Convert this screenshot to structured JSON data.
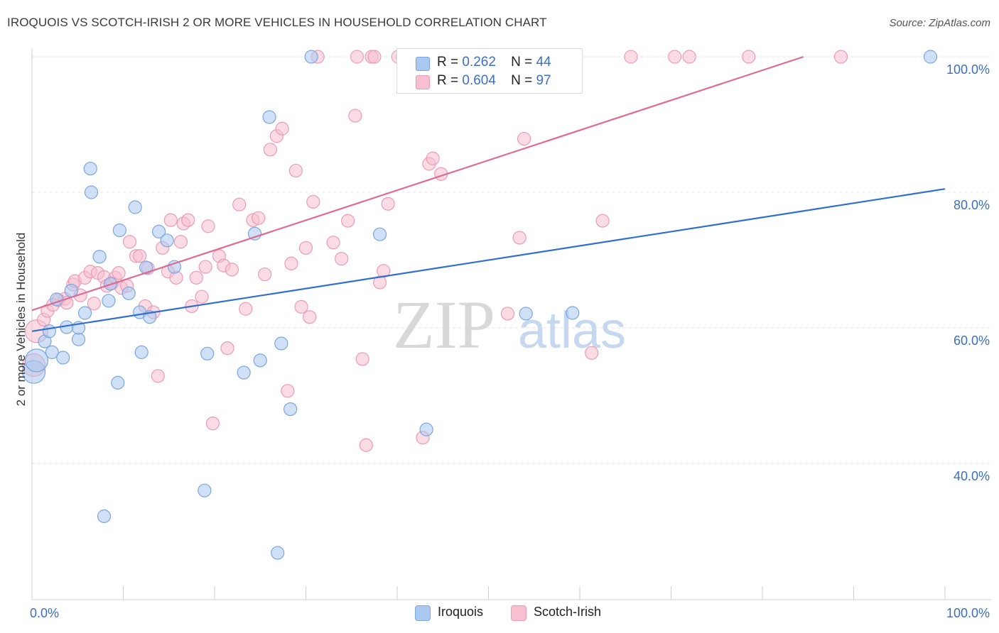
{
  "title": "IROQUOIS VS SCOTCH-IRISH 2 OR MORE VEHICLES IN HOUSEHOLD CORRELATION CHART",
  "source": "Source: ZipAtlas.com",
  "watermark": {
    "zip": "ZIP",
    "atlas": "atlas"
  },
  "legend": {
    "iroquois": {
      "r_label": "R =",
      "r_value": "0.262",
      "n_label": "N =",
      "n_value": "44"
    },
    "scotch_irish": {
      "r_label": "R =",
      "r_value": "0.604",
      "n_label": "N =",
      "n_value": "97"
    }
  },
  "bottom_legend": {
    "iroquois": "Iroquois",
    "scotch_irish": "Scotch-Irish"
  },
  "colors": {
    "iroquois_fill": "#aac8f0",
    "iroquois_stroke": "#7aa6df",
    "iroquois_line": "#2f6fcf",
    "scotch_fill": "#f7bfd0",
    "scotch_stroke": "#ee9ab5",
    "scotch_line": "#e06a92",
    "axis_text": "#3a6fc4",
    "grid": "#e3e3e3"
  },
  "chart_data": {
    "type": "scatter",
    "title": "IROQUOIS VS SCOTCH-IRISH 2 OR MORE VEHICLES IN HOUSEHOLD CORRELATION CHART",
    "xlabel": "",
    "ylabel": "2 or more Vehicles in Household",
    "xlim": [
      0,
      100
    ],
    "ylim": [
      20,
      102
    ],
    "x_tick_labels": [
      {
        "value": 0,
        "label": "0.0%"
      },
      {
        "value": 100,
        "label": "100.0%"
      }
    ],
    "y_tick_labels": [
      {
        "value": 40,
        "label": "40.0%"
      },
      {
        "value": 60,
        "label": "60.0%"
      },
      {
        "value": 80,
        "label": "80.0%"
      },
      {
        "value": 100,
        "label": "100.0%"
      }
    ],
    "series": [
      {
        "name": "Iroquois",
        "points": [
          [
            0.2,
            53.5
          ],
          [
            0.5,
            55.2
          ],
          [
            1.4,
            58.0
          ],
          [
            1.9,
            59.5
          ],
          [
            2.2,
            56.4
          ],
          [
            2.7,
            64.2
          ],
          [
            3.4,
            55.6
          ],
          [
            3.8,
            60.1
          ],
          [
            4.3,
            65.5
          ],
          [
            5.1,
            58.3
          ],
          [
            5.1,
            60.0
          ],
          [
            5.8,
            62.2
          ],
          [
            6.4,
            83.5
          ],
          [
            6.5,
            80.0
          ],
          [
            7.4,
            70.5
          ],
          [
            7.9,
            32.2
          ],
          [
            8.4,
            64.0
          ],
          [
            8.6,
            66.5
          ],
          [
            9.4,
            51.9
          ],
          [
            9.6,
            74.4
          ],
          [
            10.6,
            65.1
          ],
          [
            11.3,
            77.8
          ],
          [
            11.8,
            62.3
          ],
          [
            12.0,
            56.4
          ],
          [
            12.5,
            68.9
          ],
          [
            12.9,
            61.6
          ],
          [
            13.9,
            74.2
          ],
          [
            14.8,
            72.9
          ],
          [
            15.6,
            69.0
          ],
          [
            18.9,
            36.0
          ],
          [
            19.2,
            56.2
          ],
          [
            23.2,
            53.4
          ],
          [
            24.4,
            73.9
          ],
          [
            25.0,
            55.2
          ],
          [
            26.0,
            91.1
          ],
          [
            26.9,
            26.8
          ],
          [
            27.3,
            57.7
          ],
          [
            28.3,
            48.0
          ],
          [
            30.6,
            100.0
          ],
          [
            38.1,
            73.8
          ],
          [
            43.2,
            45.0
          ],
          [
            54.1,
            62.1
          ],
          [
            59.2,
            62.2
          ],
          [
            98.4,
            100.0
          ]
        ],
        "trend": {
          "x": [
            0,
            100
          ],
          "y": [
            59.5,
            80.5
          ]
        }
      },
      {
        "name": "Scotch-Irish",
        "points": [
          [
            0.2,
            54.5
          ],
          [
            0.5,
            59.5
          ],
          [
            1.3,
            61.2
          ],
          [
            1.7,
            62.5
          ],
          [
            2.3,
            63.4
          ],
          [
            2.9,
            64.1
          ],
          [
            3.6,
            64.3
          ],
          [
            3.8,
            63.7
          ],
          [
            4.5,
            66.4
          ],
          [
            4.7,
            66.9
          ],
          [
            5.3,
            64.8
          ],
          [
            5.8,
            67.4
          ],
          [
            6.4,
            68.3
          ],
          [
            6.8,
            63.6
          ],
          [
            7.2,
            68.1
          ],
          [
            7.9,
            67.5
          ],
          [
            8.2,
            66.2
          ],
          [
            8.8,
            66.6
          ],
          [
            9.1,
            67.4
          ],
          [
            9.5,
            68.1
          ],
          [
            9.8,
            65.9
          ],
          [
            10.4,
            66.2
          ],
          [
            10.7,
            72.7
          ],
          [
            11.4,
            70.6
          ],
          [
            11.8,
            70.6
          ],
          [
            12.4,
            63.2
          ],
          [
            12.7,
            68.8
          ],
          [
            13.3,
            62.3
          ],
          [
            13.8,
            52.9
          ],
          [
            14.3,
            71.8
          ],
          [
            14.9,
            68.3
          ],
          [
            15.2,
            75.9
          ],
          [
            15.8,
            67.4
          ],
          [
            16.3,
            72.7
          ],
          [
            16.6,
            75.4
          ],
          [
            17.1,
            75.9
          ],
          [
            17.5,
            63.2
          ],
          [
            18.0,
            67.4
          ],
          [
            18.6,
            64.6
          ],
          [
            19.0,
            69.0
          ],
          [
            19.3,
            75.0
          ],
          [
            19.8,
            45.9
          ],
          [
            20.5,
            70.6
          ],
          [
            21.0,
            69.2
          ],
          [
            21.4,
            57.0
          ],
          [
            21.9,
            68.6
          ],
          [
            22.7,
            78.2
          ],
          [
            23.4,
            62.8
          ],
          [
            24.2,
            75.9
          ],
          [
            24.8,
            76.2
          ],
          [
            25.5,
            67.9
          ],
          [
            26.1,
            86.3
          ],
          [
            26.8,
            88.3
          ],
          [
            27.4,
            89.4
          ],
          [
            28.0,
            50.7
          ],
          [
            28.4,
            69.5
          ],
          [
            28.9,
            83.2
          ],
          [
            29.5,
            63.1
          ],
          [
            30.0,
            71.8
          ],
          [
            30.4,
            61.6
          ],
          [
            30.8,
            78.6
          ],
          [
            31.3,
            100.0
          ],
          [
            33.0,
            72.6
          ],
          [
            33.9,
            70.2
          ],
          [
            34.6,
            75.8
          ],
          [
            35.4,
            91.3
          ],
          [
            35.6,
            100.0
          ],
          [
            36.2,
            55.4
          ],
          [
            36.6,
            42.7
          ],
          [
            37.2,
            100.0
          ],
          [
            37.5,
            100.0
          ],
          [
            38.1,
            66.7
          ],
          [
            38.5,
            68.4
          ],
          [
            39.0,
            78.3
          ],
          [
            40.1,
            100.0
          ],
          [
            40.6,
            100.0
          ],
          [
            41.3,
            100.0
          ],
          [
            41.9,
            100.0
          ],
          [
            42.5,
            100.0
          ],
          [
            42.8,
            43.8
          ],
          [
            43.5,
            84.2
          ],
          [
            43.9,
            85.0
          ],
          [
            44.8,
            82.7
          ],
          [
            44.2,
            100.0
          ],
          [
            46.6,
            100.0
          ],
          [
            52.1,
            62.1
          ],
          [
            53.4,
            73.3
          ],
          [
            53.9,
            87.9
          ],
          [
            54.7,
            100.0
          ],
          [
            56.1,
            100.0
          ],
          [
            61.3,
            56.3
          ],
          [
            62.5,
            75.8
          ],
          [
            65.6,
            100.0
          ],
          [
            70.4,
            100.0
          ],
          [
            72.0,
            100.0
          ],
          [
            78.5,
            100.0
          ],
          [
            88.6,
            100.0
          ]
        ],
        "trend": {
          "x": [
            0,
            84.5
          ],
          "y": [
            62.6,
            100.0
          ]
        }
      }
    ]
  }
}
